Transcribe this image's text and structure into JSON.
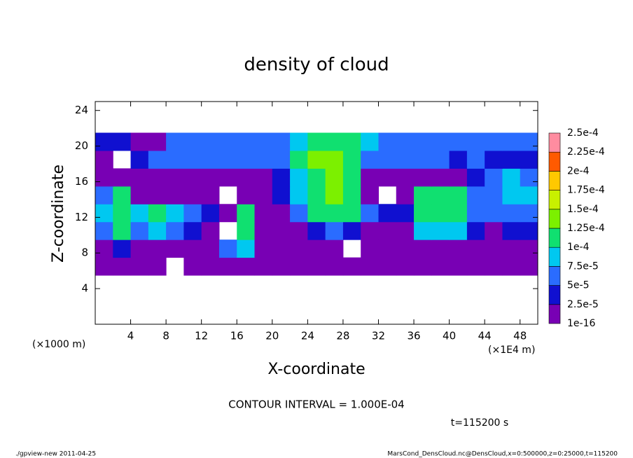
{
  "chart_data": {
    "type": "heatmap",
    "title": "density of cloud",
    "x_label": "X-coordinate",
    "y_label": "Z-coordinate",
    "x_unit_note": "(×1E4 m)",
    "y_unit_note": "(×1000 m)",
    "annotation": "CONTOUR INTERVAL = 1.000E-04",
    "time_label": "t=115200 s",
    "footer_left": "./gpview-new  2011-04-25",
    "footer_right": "MarsCond_DensCloud.nc@DensCloud,x=0:500000,z=0:25000,t=115200",
    "xlim": [
      0,
      50
    ],
    "ylim": [
      0,
      25
    ],
    "xticks": [
      4,
      8,
      12,
      16,
      20,
      24,
      28,
      32,
      36,
      40,
      44,
      48
    ],
    "yticks": [
      4,
      8,
      12,
      16,
      20,
      24
    ],
    "x": [
      1,
      3,
      5,
      7,
      9,
      11,
      13,
      15,
      17,
      19,
      21,
      23,
      25,
      27,
      29,
      31,
      33,
      35,
      37,
      39,
      41,
      43,
      45,
      47,
      49
    ],
    "y": [
      6.5,
      8.5,
      10.5,
      12.5,
      14.5,
      16.5,
      18.5,
      20.5
    ],
    "z": [
      [
        1e-05,
        1e-05,
        1e-05,
        1e-05,
        null,
        1e-05,
        1e-05,
        1e-05,
        1e-05,
        1e-05,
        1e-05,
        1e-05,
        1e-05,
        1e-05,
        1e-05,
        1e-05,
        1e-05,
        1e-05,
        1e-05,
        1e-05,
        1e-05,
        1e-05,
        1e-05,
        1e-05,
        1e-05
      ],
      [
        1e-05,
        3e-05,
        1e-05,
        2e-05,
        1e-05,
        1e-05,
        1e-05,
        5e-05,
        9e-05,
        1e-05,
        1e-05,
        1e-05,
        1e-05,
        1e-05,
        null,
        1e-05,
        1e-05,
        1e-05,
        1e-05,
        1e-05,
        1e-05,
        1e-05,
        1e-05,
        1e-05,
        1e-05
      ],
      [
        5e-05,
        0.00011,
        6e-05,
        8e-05,
        7e-05,
        4e-05,
        1e-05,
        null,
        0.0001,
        1e-05,
        1e-05,
        2e-05,
        4e-05,
        5e-05,
        4e-05,
        1e-05,
        1e-05,
        2e-05,
        8e-05,
        9e-05,
        8e-05,
        3e-05,
        2e-05,
        3e-05,
        4e-05
      ],
      [
        8e-05,
        0.00012,
        9e-05,
        0.0001,
        9e-05,
        6e-05,
        4e-05,
        1e-05,
        0.00011,
        1e-05,
        1e-05,
        6e-05,
        0.00011,
        0.00012,
        0.00012,
        5e-05,
        4e-05,
        3e-05,
        0.0001,
        0.00012,
        0.00012,
        7e-05,
        5e-05,
        6e-05,
        7e-05
      ],
      [
        6e-05,
        0.0001,
        2e-05,
        1e-05,
        1e-05,
        1e-05,
        1e-05,
        null,
        1e-05,
        1e-05,
        3e-05,
        9e-05,
        0.00012,
        0.00013,
        0.00012,
        1e-05,
        null,
        1e-05,
        0.00011,
        0.00012,
        0.0001,
        5e-05,
        6e-05,
        9e-05,
        8e-05
      ],
      [
        1e-05,
        1e-05,
        1e-05,
        1e-05,
        1e-05,
        1e-05,
        1e-05,
        1e-05,
        1e-05,
        1e-05,
        3e-05,
        9e-05,
        0.00012,
        0.00013,
        0.00011,
        2e-05,
        1e-05,
        1e-05,
        1e-05,
        2e-05,
        1e-05,
        3e-05,
        5e-05,
        8e-05,
        6e-05
      ],
      [
        1e-05,
        null,
        4e-05,
        5e-05,
        5e-05,
        5e-05,
        6e-05,
        6e-05,
        5e-05,
        5e-05,
        6e-05,
        0.0001,
        0.00013,
        0.00013,
        0.00012,
        7e-05,
        6e-05,
        6e-05,
        5e-05,
        5e-05,
        4e-05,
        5e-05,
        4e-05,
        3e-05,
        4e-05
      ],
      [
        3e-05,
        3e-05,
        2e-05,
        2e-05,
        5e-05,
        5e-05,
        5e-05,
        5e-05,
        6e-05,
        6e-05,
        6e-05,
        8e-05,
        0.00012,
        0.00012,
        0.00012,
        8e-05,
        6e-05,
        6e-05,
        5e-05,
        5e-05,
        5e-05,
        5e-05,
        6e-05,
        6e-05,
        5e-05
      ]
    ],
    "levels": [
      {
        "value": 1e-16,
        "label": "1e-16"
      },
      {
        "value": 2.5e-05,
        "label": "2.5e-5"
      },
      {
        "value": 5e-05,
        "label": "5e-5"
      },
      {
        "value": 7.5e-05,
        "label": "7.5e-5"
      },
      {
        "value": 0.0001,
        "label": "1e-4"
      },
      {
        "value": 0.000125,
        "label": "1.25e-4"
      },
      {
        "value": 0.00015,
        "label": "1.5e-4"
      },
      {
        "value": 0.000175,
        "label": "1.75e-4"
      },
      {
        "value": 0.0002,
        "label": "2e-4"
      },
      {
        "value": 0.000225,
        "label": "2.25e-4"
      },
      {
        "value": 0.00025,
        "label": "2.5e-4"
      }
    ],
    "colors": [
      "#7800b4",
      "#1010d0",
      "#2a6cff",
      "#00c8f0",
      "#10e070",
      "#7cf000",
      "#c8f000",
      "#ffc800",
      "#ff5a00",
      "#ff8ca0"
    ]
  }
}
